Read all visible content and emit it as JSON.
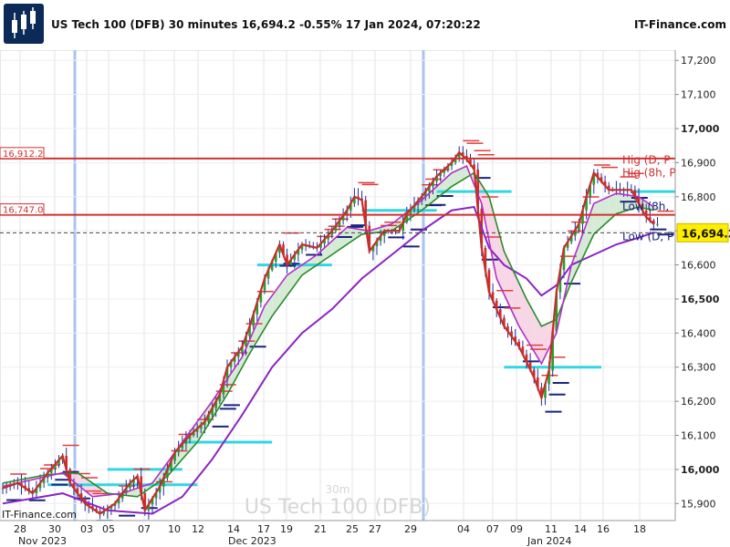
{
  "header": {
    "title": "US Tech 100 (DFB) 30 minutes 16,694.2 -0.55% 17 Jan 2024, 07:20:22",
    "brand": "IT-Finance.com",
    "logo_icon": "candlestick-logo-icon"
  },
  "chart_data": {
    "type": "candlestick",
    "instrument": "US Tech 100 (DFB)",
    "timeframe": "30m",
    "watermark_tf": "30m",
    "watermark_name": "US Tech 100 (DFB)",
    "bottom_left_brand": "IT-Finance.com",
    "ylim": [
      15850,
      17230
    ],
    "y_ticks": [
      17200,
      17100,
      17000,
      16900,
      16800,
      16700,
      16600,
      16500,
      16400,
      16300,
      16200,
      16100,
      16000,
      15900
    ],
    "y_tick_labels": [
      "17,200",
      "17,100",
      "17,000",
      "16,900",
      "16,800",
      "16,700",
      "16,600",
      "16,500",
      "16,400",
      "16,300",
      "16,200",
      "16,100",
      "16,000",
      "15,900"
    ],
    "x_tick_labels": [
      "28",
      "30",
      "03",
      "05",
      "07",
      "10",
      "12",
      "14",
      "17",
      "19",
      "21",
      "25",
      "27",
      "29",
      "04",
      "07",
      "09",
      "11",
      "14",
      "16",
      "18"
    ],
    "month_labels": [
      "Nov 2023",
      "Dec 2023",
      "Jan 2024"
    ],
    "current_price": "16,694.2",
    "current_price_value": 16694.2,
    "levels": [
      {
        "label": "16,912.2",
        "value": 16912.2
      },
      {
        "label": "16,747.0",
        "value": 16747.0
      }
    ],
    "right_labels": [
      {
        "text": "Hig (D, P",
        "value": 16908
      },
      {
        "text": "Hig (8h, P",
        "value": 16870
      },
      {
        "text": "Low (8h,",
        "value": 16772
      },
      {
        "text": "Low (D, P",
        "value": 16683
      }
    ],
    "price_path": [
      [
        0,
        15945
      ],
      [
        2,
        15960
      ],
      [
        4,
        15930
      ],
      [
        6,
        15990
      ],
      [
        8,
        16040
      ],
      [
        9,
        15960
      ],
      [
        11,
        15900
      ],
      [
        13,
        15870
      ],
      [
        15,
        15900
      ],
      [
        17,
        15960
      ],
      [
        18,
        15980
      ],
      [
        19,
        15880
      ],
      [
        21,
        15950
      ],
      [
        23,
        16050
      ],
      [
        25,
        16100
      ],
      [
        27,
        16140
      ],
      [
        29,
        16220
      ],
      [
        30,
        16300
      ],
      [
        32,
        16360
      ],
      [
        33,
        16420
      ],
      [
        35,
        16560
      ],
      [
        37,
        16660
      ],
      [
        38,
        16600
      ],
      [
        40,
        16660
      ],
      [
        42,
        16650
      ],
      [
        44,
        16700
      ],
      [
        46,
        16760
      ],
      [
        47,
        16800
      ],
      [
        48,
        16790
      ],
      [
        49,
        16640
      ],
      [
        51,
        16700
      ],
      [
        53,
        16700
      ],
      [
        54,
        16750
      ],
      [
        56,
        16800
      ],
      [
        58,
        16860
      ],
      [
        60,
        16900
      ],
      [
        61,
        16930
      ],
      [
        62,
        16910
      ],
      [
        63,
        16880
      ],
      [
        64,
        16650
      ],
      [
        65,
        16520
      ],
      [
        67,
        16420
      ],
      [
        69,
        16360
      ],
      [
        71,
        16270
      ],
      [
        72,
        16210
      ],
      [
        73,
        16290
      ],
      [
        74,
        16520
      ],
      [
        75,
        16650
      ],
      [
        77,
        16720
      ],
      [
        78,
        16800
      ],
      [
        79,
        16870
      ],
      [
        81,
        16820
      ],
      [
        82,
        16820
      ],
      [
        84,
        16820
      ],
      [
        85,
        16780
      ],
      [
        86,
        16740
      ],
      [
        87,
        16720
      ]
    ],
    "ma_fast": [
      [
        0,
        15950
      ],
      [
        4,
        15970
      ],
      [
        8,
        15990
      ],
      [
        12,
        15920
      ],
      [
        16,
        15930
      ],
      [
        20,
        15960
      ],
      [
        24,
        16080
      ],
      [
        28,
        16200
      ],
      [
        32,
        16330
      ],
      [
        35,
        16480
      ],
      [
        38,
        16570
      ],
      [
        42,
        16630
      ],
      [
        46,
        16710
      ],
      [
        49,
        16700
      ],
      [
        52,
        16720
      ],
      [
        56,
        16790
      ],
      [
        60,
        16870
      ],
      [
        62,
        16890
      ],
      [
        64,
        16780
      ],
      [
        66,
        16560
      ],
      [
        69,
        16420
      ],
      [
        72,
        16310
      ],
      [
        74,
        16400
      ],
      [
        76,
        16600
      ],
      [
        79,
        16780
      ],
      [
        82,
        16810
      ],
      [
        85,
        16800
      ],
      [
        87,
        16770
      ]
    ],
    "ma_mid": [
      [
        0,
        15960
      ],
      [
        6,
        15985
      ],
      [
        10,
        15990
      ],
      [
        14,
        15930
      ],
      [
        18,
        15920
      ],
      [
        22,
        15980
      ],
      [
        26,
        16080
      ],
      [
        30,
        16220
      ],
      [
        33,
        16340
      ],
      [
        36,
        16450
      ],
      [
        40,
        16570
      ],
      [
        44,
        16630
      ],
      [
        48,
        16690
      ],
      [
        52,
        16700
      ],
      [
        56,
        16760
      ],
      [
        60,
        16830
      ],
      [
        63,
        16870
      ],
      [
        65,
        16800
      ],
      [
        67,
        16640
      ],
      [
        70,
        16500
      ],
      [
        72,
        16420
      ],
      [
        74,
        16440
      ],
      [
        76,
        16550
      ],
      [
        79,
        16690
      ],
      [
        82,
        16750
      ],
      [
        85,
        16770
      ],
      [
        87,
        16760
      ]
    ],
    "ma_slow": [
      [
        0,
        15900
      ],
      [
        8,
        15930
      ],
      [
        14,
        15880
      ],
      [
        20,
        15870
      ],
      [
        24,
        15920
      ],
      [
        28,
        16030
      ],
      [
        32,
        16160
      ],
      [
        36,
        16300
      ],
      [
        40,
        16400
      ],
      [
        44,
        16470
      ],
      [
        48,
        16560
      ],
      [
        52,
        16630
      ],
      [
        56,
        16700
      ],
      [
        60,
        16760
      ],
      [
        63,
        16770
      ],
      [
        65,
        16650
      ],
      [
        67,
        16600
      ],
      [
        70,
        16560
      ],
      [
        72,
        16510
      ],
      [
        74,
        16540
      ],
      [
        76,
        16600
      ],
      [
        79,
        16630
      ],
      [
        82,
        16660
      ],
      [
        85,
        16680
      ],
      [
        87,
        16695
      ]
    ],
    "support_segments": [
      {
        "x0": 6,
        "x1": 26,
        "value": 15955
      },
      {
        "x0": 14,
        "x1": 24,
        "value": 16000
      },
      {
        "x0": 24,
        "x1": 36,
        "value": 16080
      },
      {
        "x0": 34,
        "x1": 44,
        "value": 16600
      },
      {
        "x0": 48,
        "x1": 58,
        "value": 16760
      },
      {
        "x0": 58,
        "x1": 68,
        "value": 16815
      },
      {
        "x0": 67,
        "x1": 80,
        "value": 16300
      },
      {
        "x0": 84,
        "x1": 92,
        "value": 16815
      }
    ]
  }
}
